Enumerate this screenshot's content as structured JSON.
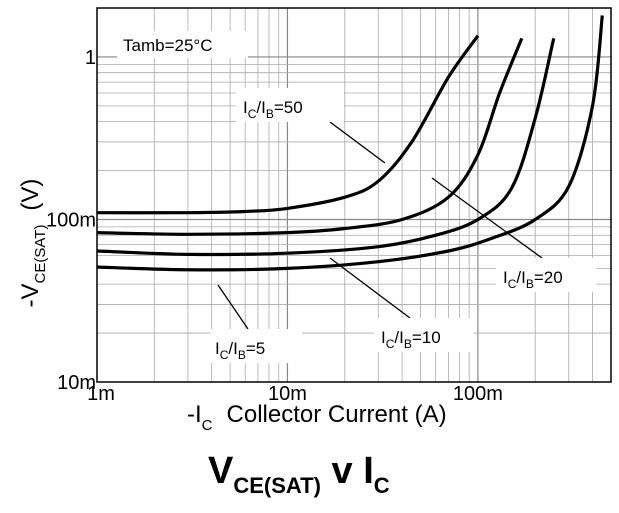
{
  "chart_data": {
    "type": "line",
    "title": {
      "main": "V",
      "sub": "CE(SAT)",
      "mid": " v I",
      "sub2": "C"
    },
    "ylabel": {
      "prefix": "-V",
      "sub": "CE(SAT)",
      "suffix": "(V)"
    },
    "xlabel": {
      "prefix": "-I",
      "sub": "C",
      "text": "Collector Current (A)"
    },
    "x_scale": "log",
    "y_scale": "log",
    "xlim": [
      0.001,
      0.5
    ],
    "ylim": [
      0.01,
      2
    ],
    "x_ticks": [
      {
        "value": 0.001,
        "label": "1m"
      },
      {
        "value": 0.01,
        "label": "10m"
      },
      {
        "value": 0.1,
        "label": "100m"
      }
    ],
    "y_ticks": [
      {
        "value": 0.01,
        "label": "10m"
      },
      {
        "value": 0.1,
        "label": "100m"
      },
      {
        "value": 1,
        "label": "1"
      }
    ],
    "grid": true,
    "annotation": "Tamb=25°C",
    "series": [
      {
        "name": "IC/IB=50",
        "label_main": "I",
        "label_sub1": "C",
        "label_mid": "/I",
        "label_sub2": "B",
        "label_tail": "=50",
        "x": [
          0.001,
          0.003,
          0.006,
          0.01,
          0.02,
          0.03,
          0.045,
          0.07,
          0.1
        ],
        "y": [
          0.11,
          0.11,
          0.112,
          0.117,
          0.137,
          0.172,
          0.3,
          0.75,
          1.35
        ]
      },
      {
        "name": "IC/IB=20",
        "label_main": "I",
        "label_sub1": "C",
        "label_mid": "/I",
        "label_sub2": "B",
        "label_tail": "=20",
        "x": [
          0.001,
          0.003,
          0.01,
          0.02,
          0.04,
          0.07,
          0.1,
          0.13,
          0.17
        ],
        "y": [
          0.083,
          0.081,
          0.083,
          0.088,
          0.1,
          0.137,
          0.25,
          0.6,
          1.3
        ]
      },
      {
        "name": "IC/IB=10",
        "label_main": "I",
        "label_sub1": "C",
        "label_mid": "/I",
        "label_sub2": "B",
        "label_tail": "=10",
        "x": [
          0.001,
          0.003,
          0.01,
          0.03,
          0.06,
          0.1,
          0.15,
          0.2,
          0.25
        ],
        "y": [
          0.064,
          0.061,
          0.062,
          0.068,
          0.08,
          0.1,
          0.155,
          0.42,
          1.3
        ]
      },
      {
        "name": "IC/IB=5",
        "label_main": "I",
        "label_sub1": "C",
        "label_mid": "/I",
        "label_sub2": "B",
        "label_tail": "=5",
        "x": [
          0.001,
          0.003,
          0.01,
          0.03,
          0.07,
          0.12,
          0.2,
          0.3,
          0.4,
          0.45
        ],
        "y": [
          0.051,
          0.049,
          0.05,
          0.055,
          0.064,
          0.077,
          0.1,
          0.16,
          0.5,
          1.8
        ]
      }
    ]
  }
}
